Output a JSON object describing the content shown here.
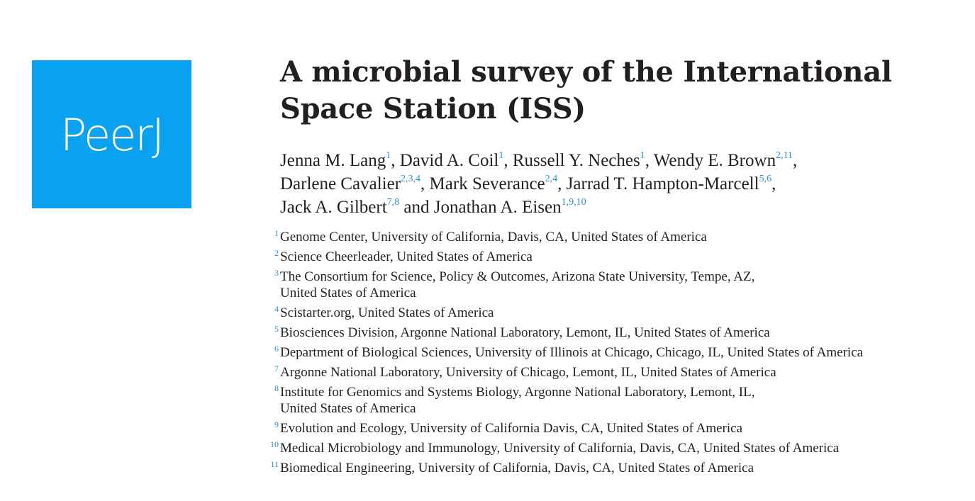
{
  "logo": {
    "text": "PeerJ",
    "color": "#0aa1f0"
  },
  "title": {
    "line1": "A microbial survey of the International",
    "line2": "Space Station (ISS)"
  },
  "authors": [
    {
      "name": "Jenna M. Lang",
      "sup": "1",
      "sep": ", "
    },
    {
      "name": "David A. Coil",
      "sup": "1",
      "sep": ", "
    },
    {
      "name": "Russell Y. Neches",
      "sup": "1",
      "sep": ", "
    },
    {
      "name": "Wendy E. Brown",
      "sup": "2,11",
      "sep": ","
    },
    {
      "name": "Darlene Cavalier",
      "sup": "2,3,4",
      "sep": ", "
    },
    {
      "name": "Mark Severance",
      "sup": "2,4",
      "sep": ", "
    },
    {
      "name": "Jarrad T. Hampton-Marcell",
      "sup": "5,6",
      "sep": ","
    },
    {
      "name": "Jack A. Gilbert",
      "sup": "7,8",
      "sep": " and "
    },
    {
      "name": "Jonathan A. Eisen",
      "sup": "1,9,10",
      "sep": ""
    }
  ],
  "affiliations": [
    {
      "num": "1",
      "text": "Genome Center, University of California, Davis, CA, United States of America"
    },
    {
      "num": "2",
      "text": "Science Cheerleader, United States of America"
    },
    {
      "num": "3",
      "text": "The Consortium for Science, Policy & Outcomes, Arizona State University, Tempe, AZ,",
      "text2": "United States of America"
    },
    {
      "num": "4",
      "text": "Scistarter.org, United States of America"
    },
    {
      "num": "5",
      "text": "Biosciences Division, Argonne National Laboratory, Lemont, IL, United States of America"
    },
    {
      "num": "6",
      "text": "Department of Biological Sciences, University of Illinois at Chicago, Chicago, IL, United States of America"
    },
    {
      "num": "7",
      "text": "Argonne National Laboratory, University of Chicago, Lemont, IL, United States of America"
    },
    {
      "num": "8",
      "text": "Institute for Genomics and Systems Biology, Argonne National Laboratory, Lemont, IL,",
      "text2": "United States of America"
    },
    {
      "num": "9",
      "text": "Evolution and Ecology, University of California Davis, CA, United States of America"
    },
    {
      "num": "10",
      "text": "Medical Microbiology and Immunology, University of California, Davis, CA, United States of America"
    },
    {
      "num": "11",
      "text": "Biomedical Engineering, University of California, Davis, CA, United States of America"
    }
  ]
}
